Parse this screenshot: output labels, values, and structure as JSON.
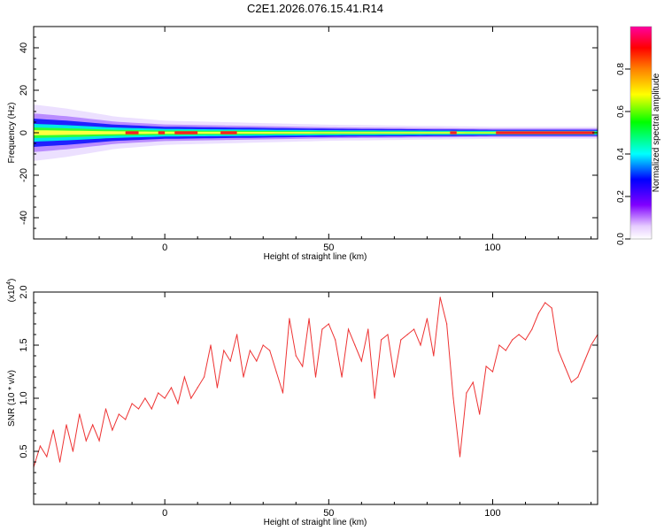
{
  "chart_data": [
    {
      "type": "heatmap",
      "title": "C2E1.2026.076.15.41.R14",
      "xlabel": "Height of straight line (km)",
      "ylabel": "Frequency (Hz)",
      "xlim": [
        -40,
        132
      ],
      "ylim": [
        -50,
        50
      ],
      "xticks": [
        0,
        50,
        100
      ],
      "yticks": [
        -40,
        -20,
        0,
        20,
        40
      ],
      "xtick_labels": [
        "0",
        "50",
        "100"
      ],
      "ytick_labels": [
        "-40",
        "-20",
        "0",
        "20",
        "40"
      ],
      "colorbar": {
        "label": "Normalized spectral amplitude",
        "range": [
          0,
          1
        ],
        "ticks": [
          0.0,
          0.2,
          0.4,
          0.6,
          0.8
        ],
        "tick_labels": [
          "0.0",
          "0.2",
          "0.4",
          "0.6",
          "0.8"
        ],
        "colors": [
          "#ffffff",
          "#e6ccff",
          "#8000ff",
          "#0000ff",
          "#00ffff",
          "#00ff00",
          "#ffff00",
          "#ff8000",
          "#ff0000",
          "#ff00a0"
        ]
      },
      "band": {
        "center_hz": 0,
        "halfwidth_hz": [
          [
            -40,
            7
          ],
          [
            -30,
            6
          ],
          [
            -15,
            4
          ],
          [
            0,
            3
          ],
          [
            50,
            2
          ],
          [
            100,
            1.5
          ],
          [
            132,
            1.5
          ]
        ],
        "peak_segments": [
          [
            -12,
            -8
          ],
          [
            -2,
            0
          ],
          [
            3,
            10
          ],
          [
            17,
            22
          ],
          [
            87,
            89
          ],
          [
            101,
            131
          ]
        ]
      }
    },
    {
      "type": "line",
      "xlabel": "Height of straight line (km)",
      "ylabel": "SNR (10 * v/v)",
      "y_multiplier": "(x10",
      "y_multiplier_exp": "4",
      "y_multiplier_close": ")",
      "xlim": [
        -40,
        132
      ],
      "ylim": [
        0,
        2.0
      ],
      "xticks": [
        0,
        50,
        100
      ],
      "yticks": [
        0.5,
        1.0,
        1.5,
        2.0
      ],
      "xtick_labels": [
        "0",
        "50",
        "100"
      ],
      "ytick_labels": [
        "0.5",
        "1.0",
        "1.5",
        "2.0"
      ],
      "line_color": "#ee3333",
      "series": [
        {
          "name": "SNR",
          "x": [
            -40,
            -38,
            -36,
            -34,
            -32,
            -30,
            -28,
            -26,
            -24,
            -22,
            -20,
            -18,
            -16,
            -14,
            -12,
            -10,
            -8,
            -6,
            -4,
            -2,
            0,
            2,
            4,
            6,
            8,
            10,
            12,
            14,
            16,
            18,
            20,
            22,
            24,
            26,
            28,
            30,
            32,
            34,
            36,
            38,
            40,
            42,
            44,
            46,
            48,
            50,
            52,
            54,
            56,
            58,
            60,
            62,
            64,
            66,
            68,
            70,
            72,
            74,
            76,
            78,
            80,
            82,
            84,
            86,
            88,
            90,
            92,
            94,
            96,
            98,
            100,
            102,
            104,
            106,
            108,
            110,
            112,
            114,
            116,
            118,
            120,
            122,
            124,
            126,
            128,
            130,
            132
          ],
          "values": [
            0.35,
            0.55,
            0.45,
            0.7,
            0.4,
            0.75,
            0.5,
            0.85,
            0.6,
            0.75,
            0.6,
            0.9,
            0.7,
            0.85,
            0.8,
            0.95,
            0.9,
            1.0,
            0.9,
            1.05,
            1.0,
            1.1,
            0.95,
            1.2,
            1.0,
            1.1,
            1.2,
            1.5,
            1.1,
            1.45,
            1.35,
            1.6,
            1.2,
            1.45,
            1.35,
            1.5,
            1.45,
            1.25,
            1.05,
            1.75,
            1.4,
            1.3,
            1.75,
            1.2,
            1.65,
            1.7,
            1.55,
            1.2,
            1.65,
            1.5,
            1.35,
            1.65,
            1.0,
            1.55,
            1.6,
            1.2,
            1.55,
            1.6,
            1.65,
            1.5,
            1.75,
            1.4,
            1.95,
            1.7,
            1.0,
            0.45,
            1.05,
            1.15,
            0.85,
            1.3,
            1.25,
            1.5,
            1.45,
            1.55,
            1.6,
            1.55,
            1.65,
            1.8,
            1.9,
            1.85,
            1.45,
            1.3,
            1.15,
            1.2,
            1.35,
            1.5,
            1.6
          ]
        }
      ]
    }
  ]
}
